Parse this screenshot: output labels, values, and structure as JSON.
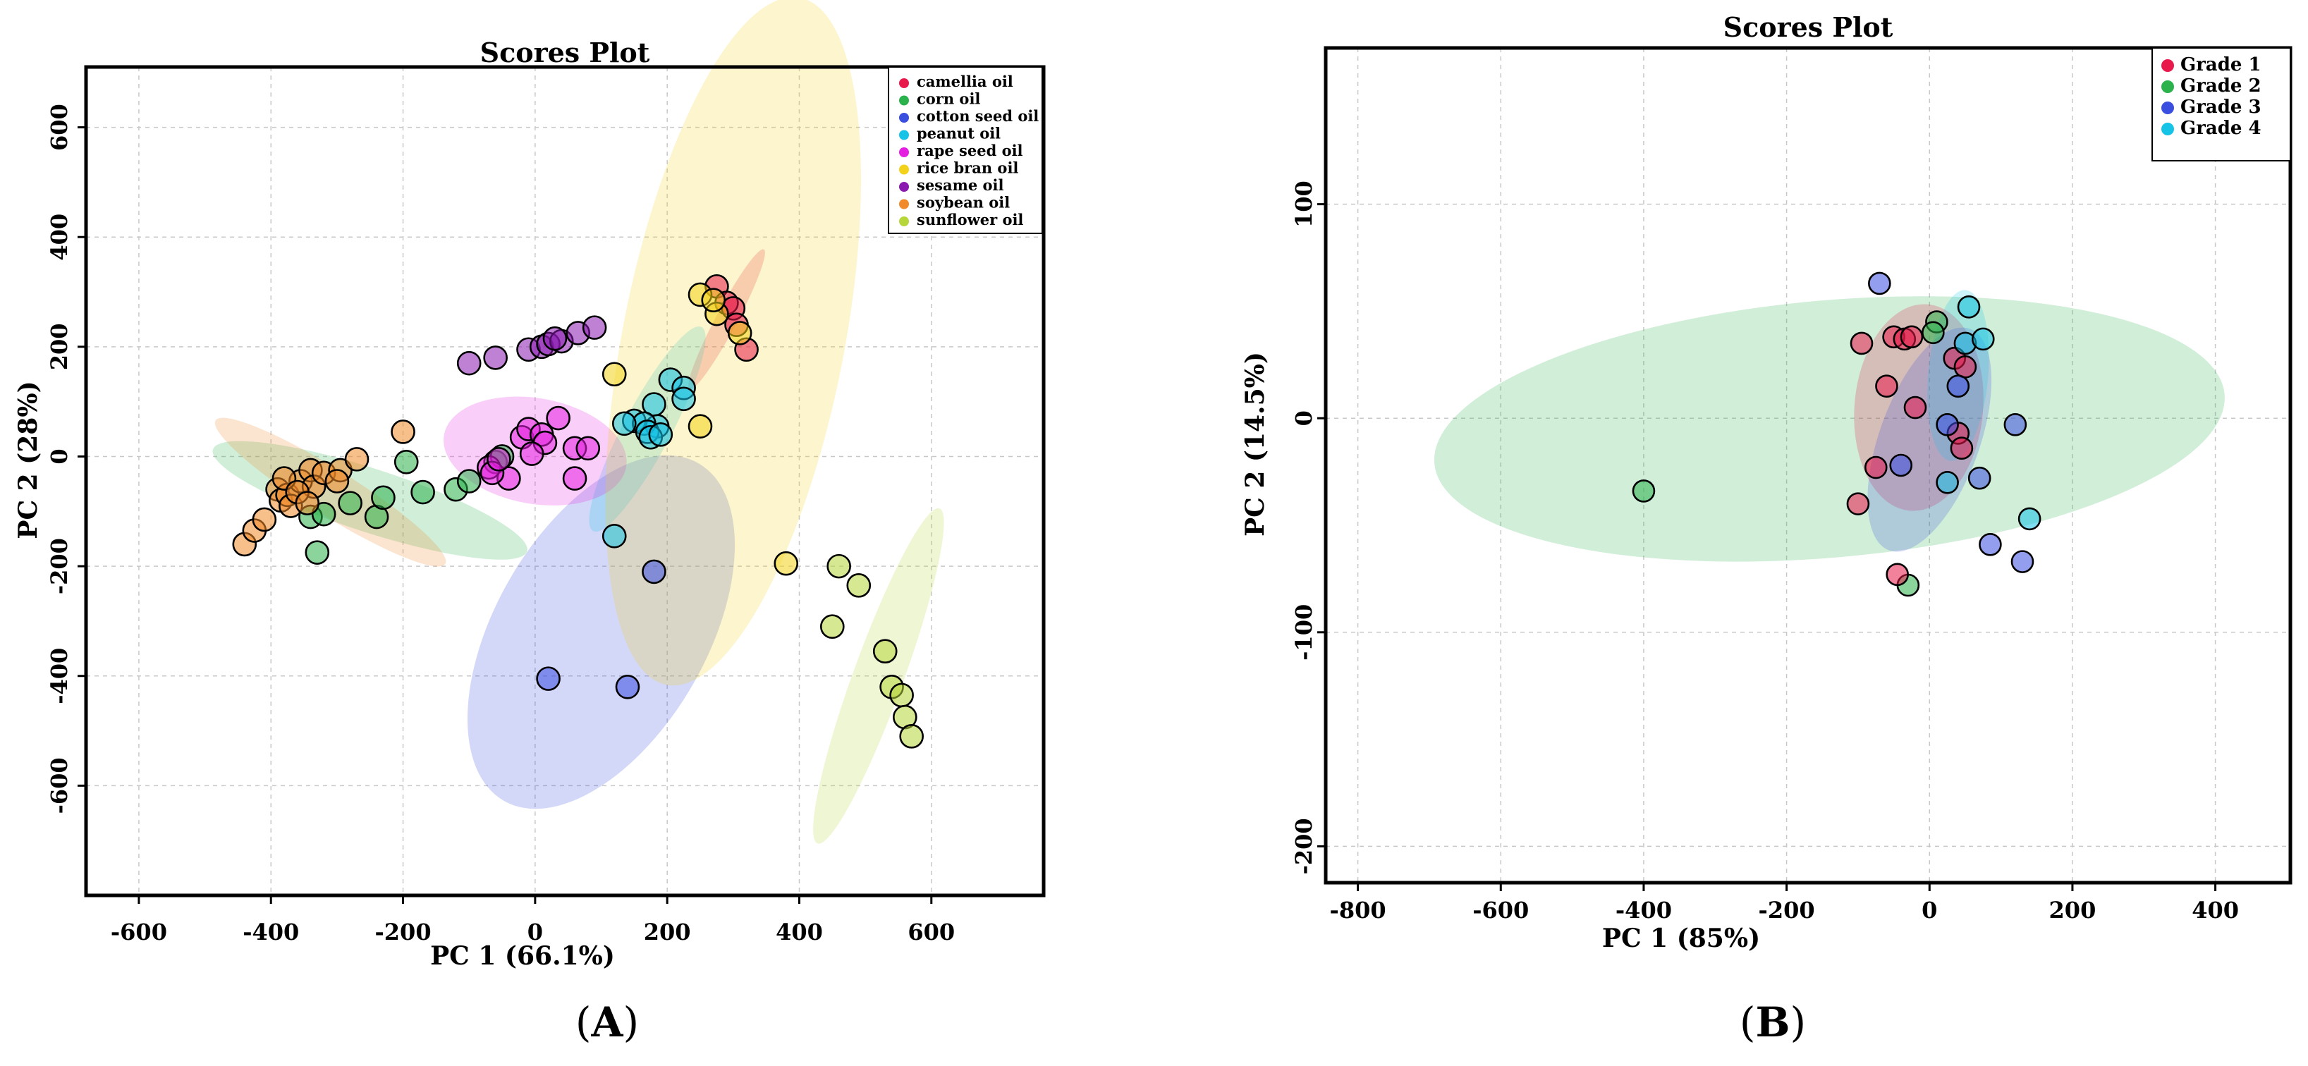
{
  "chart_data": [
    {
      "id": "A",
      "type": "scatter",
      "title": "Scores Plot",
      "xlabel": "PC 1 (66.1%)",
      "ylabel": "PC 2 (28%)",
      "xlim": [
        -680,
        770
      ],
      "ylim": [
        -800,
        710
      ],
      "xticks": [
        -600,
        -400,
        -200,
        0,
        200,
        400,
        600
      ],
      "yticks": [
        -600,
        -400,
        -200,
        0,
        200,
        400,
        600
      ],
      "grid": true,
      "legend_position": "top-right",
      "panel_label": {
        "open": "(",
        "letter": "A",
        "close": ")"
      },
      "series": [
        {
          "name": "camellia oil",
          "color": "#e8194b",
          "ellipse": {
            "cx": 290,
            "cy": 250,
            "rx": 120,
            "ry": 16,
            "angle": -62
          },
          "points": [
            [
              275,
              310
            ],
            [
              290,
              280
            ],
            [
              300,
              270
            ],
            [
              320,
              195
            ],
            [
              305,
              240
            ]
          ]
        },
        {
          "name": "corn oil",
          "color": "#2bb24c",
          "ellipse": {
            "cx": -250,
            "cy": -80,
            "rx": 250,
            "ry": 48,
            "angle": 18
          },
          "points": [
            [
              -340,
              -110
            ],
            [
              -320,
              -105
            ],
            [
              -280,
              -85
            ],
            [
              -240,
              -110
            ],
            [
              -230,
              -75
            ],
            [
              -195,
              -10
            ],
            [
              -170,
              -65
            ],
            [
              -120,
              -60
            ],
            [
              -100,
              -45
            ],
            [
              -60,
              -10
            ],
            [
              -330,
              -175
            ],
            [
              -50,
              0
            ]
          ]
        },
        {
          "name": "cotton seed oil",
          "color": "#3a4fe0",
          "ellipse": {
            "cx": 100,
            "cy": -320,
            "rx": 295,
            "ry": 160,
            "angle": -60
          },
          "points": [
            [
              180,
              -210
            ],
            [
              140,
              -420
            ],
            [
              20,
              -405
            ]
          ]
        },
        {
          "name": "peanut oil",
          "color": "#15c3e6",
          "ellipse": {
            "cx": 170,
            "cy": 50,
            "rx": 175,
            "ry": 36,
            "angle": -62
          },
          "points": [
            [
              205,
              140
            ],
            [
              225,
              125
            ],
            [
              225,
              105
            ],
            [
              180,
              95
            ],
            [
              185,
              55
            ],
            [
              150,
              65
            ],
            [
              165,
              60
            ],
            [
              170,
              45
            ],
            [
              175,
              35
            ],
            [
              190,
              40
            ],
            [
              135,
              60
            ],
            [
              120,
              -145
            ]
          ]
        },
        {
          "name": "rape seed oil",
          "color": "#e51fe0",
          "ellipse": {
            "cx": 0,
            "cy": 10,
            "rx": 140,
            "ry": 80,
            "angle": 10
          },
          "points": [
            [
              -70,
              -20
            ],
            [
              -40,
              -40
            ],
            [
              -20,
              35
            ],
            [
              -10,
              50
            ],
            [
              10,
              40
            ],
            [
              15,
              25
            ],
            [
              35,
              70
            ],
            [
              60,
              15
            ],
            [
              80,
              15
            ],
            [
              -5,
              5
            ],
            [
              -65,
              -30
            ],
            [
              -55,
              -5
            ],
            [
              60,
              -40
            ]
          ]
        },
        {
          "name": "sesame oil",
          "color": "#8a1ab0",
          "ellipse": null,
          "points": [
            [
              -100,
              170
            ],
            [
              -60,
              180
            ],
            [
              -10,
              195
            ],
            [
              10,
              200
            ],
            [
              20,
              205
            ],
            [
              40,
              210
            ],
            [
              65,
              225
            ],
            [
              90,
              235
            ],
            [
              30,
              215
            ]
          ]
        },
        {
          "name": "rice bran oil",
          "color": "#f2d21a",
          "ellipse": {
            "cx": 300,
            "cy": 210,
            "rx": 530,
            "ry": 168,
            "angle": -79
          },
          "points": [
            [
              250,
              295
            ],
            [
              275,
              260
            ],
            [
              310,
              225
            ],
            [
              270,
              285
            ],
            [
              120,
              150
            ],
            [
              250,
              55
            ],
            [
              380,
              -195
            ]
          ]
        },
        {
          "name": "soybean oil",
          "color": "#f08a2a",
          "ellipse": {
            "cx": -310,
            "cy": -65,
            "rx": 205,
            "ry": 35,
            "angle": 32
          },
          "points": [
            [
              -440,
              -160
            ],
            [
              -425,
              -135
            ],
            [
              -410,
              -115
            ],
            [
              -390,
              -60
            ],
            [
              -385,
              -80
            ],
            [
              -375,
              -70
            ],
            [
              -370,
              -90
            ],
            [
              -355,
              -45
            ],
            [
              -340,
              -25
            ],
            [
              -335,
              -55
            ],
            [
              -320,
              -30
            ],
            [
              -295,
              -25
            ],
            [
              -270,
              -5
            ],
            [
              -200,
              45
            ],
            [
              -380,
              -40
            ],
            [
              -360,
              -65
            ],
            [
              -345,
              -85
            ],
            [
              -300,
              -45
            ]
          ]
        },
        {
          "name": "sunflower oil",
          "color": "#b6d63a",
          "ellipse": {
            "cx": 520,
            "cy": -400,
            "rx": 270,
            "ry": 38,
            "angle": -70
          },
          "points": [
            [
              460,
              -200
            ],
            [
              490,
              -235
            ],
            [
              450,
              -310
            ],
            [
              530,
              -355
            ],
            [
              540,
              -420
            ],
            [
              555,
              -435
            ],
            [
              560,
              -475
            ],
            [
              570,
              -510
            ]
          ]
        }
      ]
    },
    {
      "id": "B",
      "type": "scatter",
      "title": "Scores Plot",
      "xlabel": "PC 1 (85%)",
      "ylabel": "PC 2 (14.5%)",
      "xlim": [
        -845,
        505
      ],
      "ylim": [
        -217,
        173
      ],
      "xticks": [
        -800,
        -600,
        -400,
        -200,
        0,
        200,
        400
      ],
      "yticks": [
        -200,
        -100,
        0,
        100
      ],
      "grid": true,
      "legend_position": "top-right",
      "panel_label": {
        "open": "(",
        "letter": "B",
        "close": ")"
      },
      "series": [
        {
          "name": "Grade 2",
          "color": "#2bb24c",
          "ellipse": {
            "cx": -140,
            "cy": -5,
            "rx": 555,
            "ry": 180,
            "angle": -5
          },
          "points": [
            [
              10,
              45
            ],
            [
              5,
              40
            ],
            [
              -400,
              -34
            ],
            [
              -30,
              -78
            ]
          ]
        },
        {
          "name": "Grade 1",
          "color": "#e8194b",
          "ellipse": {
            "cx": -15,
            "cy": 5,
            "rx": 145,
            "ry": 90,
            "angle": -85
          },
          "points": [
            [
              -95,
              35
            ],
            [
              -50,
              38
            ],
            [
              -35,
              37
            ],
            [
              -25,
              38
            ],
            [
              35,
              28
            ],
            [
              50,
              24
            ],
            [
              -60,
              15
            ],
            [
              -20,
              5
            ],
            [
              -75,
              -23
            ],
            [
              40,
              -7
            ],
            [
              45,
              -14
            ],
            [
              -100,
              -40
            ],
            [
              -45,
              -73
            ]
          ]
        },
        {
          "name": "Grade 3",
          "color": "#3a4fe0",
          "ellipse": {
            "cx": 0,
            "cy": -10,
            "rx": 165,
            "ry": 70,
            "angle": -70
          },
          "points": [
            [
              -70,
              63
            ],
            [
              40,
              15
            ],
            [
              25,
              -3
            ],
            [
              -40,
              -22
            ],
            [
              70,
              -28
            ],
            [
              120,
              -3
            ],
            [
              85,
              -59
            ],
            [
              130,
              -67
            ]
          ]
        },
        {
          "name": "Grade 4",
          "color": "#15c3e6",
          "ellipse": {
            "cx": 40,
            "cy": 20,
            "rx": 120,
            "ry": 42,
            "angle": -85
          },
          "points": [
            [
              55,
              52
            ],
            [
              50,
              35
            ],
            [
              75,
              37
            ],
            [
              140,
              -47
            ],
            [
              25,
              -30
            ]
          ]
        }
      ]
    }
  ]
}
